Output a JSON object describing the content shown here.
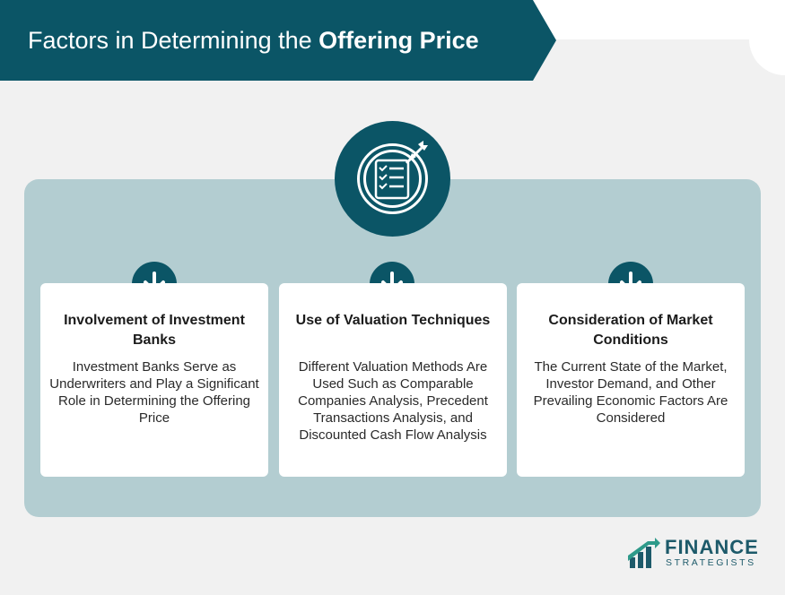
{
  "header": {
    "title_regular": "Factors in Determining the ",
    "title_bold": "Offering Price",
    "banner_color": "#0b5566"
  },
  "center_icon": {
    "icon": "checklist-target-icon",
    "color": "#0b5566"
  },
  "cards": [
    {
      "title": "Involvement of Investment Banks",
      "body": "Investment Banks Serve as Underwriters and Play a Significant Role in Determining the Offering Price",
      "icon": "arrow-down-icon"
    },
    {
      "title": "Use of Valuation Techniques",
      "body": "Different Valuation Methods Are Used Such as Comparable Companies Analysis, Precedent Transactions Analysis, and Discounted Cash Flow Analysis",
      "icon": "arrow-down-icon"
    },
    {
      "title": "Consideration of Market Conditions",
      "body": "The Current State of the Market, Investor Demand, and Other Prevailing Economic Factors Are Considered",
      "icon": "arrow-down-icon"
    }
  ],
  "logo": {
    "line1": "FINANCE",
    "line2": "STRATEGISTS"
  },
  "colors": {
    "accent": "#0b5566",
    "panel": "#b3cdd1",
    "background": "#f1f1f1"
  }
}
